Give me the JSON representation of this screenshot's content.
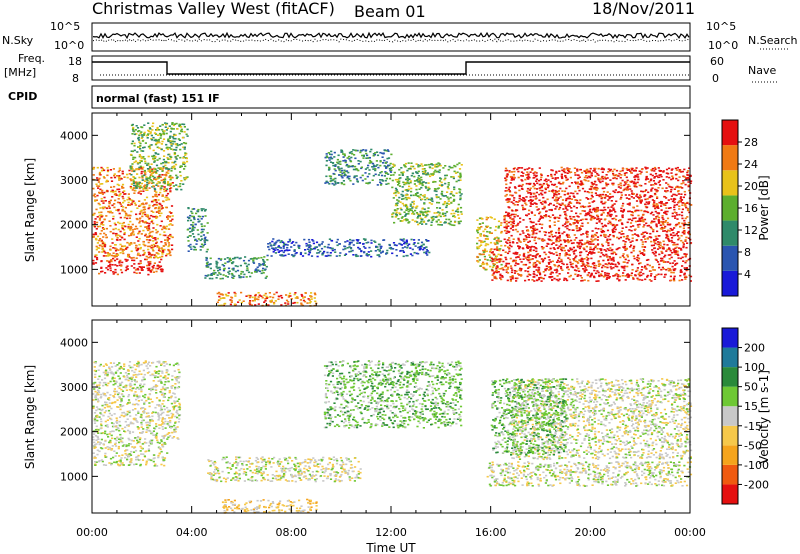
{
  "header": {
    "station": "Christmas Valley West (fitACF)",
    "beam": "Beam 01",
    "date": "18/Nov/2011"
  },
  "strip": {
    "nsky_label": "N.Sky",
    "nsky_ticks": [
      "10^5",
      "10^0"
    ],
    "nsearch_label": "N.Search",
    "nsearch_ticks": [
      "10^5",
      "10^0"
    ],
    "freq_label": "Freq.",
    "freq_unit": "[MHz]",
    "freq_ticks": [
      "18",
      "8"
    ],
    "nave_label": "Nave",
    "nave_ticks": [
      "60",
      "0"
    ],
    "cpid_label": "CPID",
    "cpid_value": "normal (fast) 151 IF"
  },
  "chart_data": [
    {
      "type": "heatmap",
      "name": "power",
      "ylabel": "Slant Range [km]",
      "ylim": [
        180,
        4500
      ],
      "yticks": [
        1000,
        2000,
        3000,
        4000
      ],
      "xlim": [
        0,
        24
      ],
      "colorbar_label": "Power [dB]",
      "colorbar_ticks": [
        "4",
        "8",
        "12",
        "16",
        "20",
        "24",
        "28"
      ],
      "colors": [
        "#1a1ad8",
        "#2a55b0",
        "#2f8a6a",
        "#5cae2e",
        "#e8c21a",
        "#f07a14",
        "#e51010"
      ],
      "regions": [
        {
          "t0": 0.0,
          "t1": 2.8,
          "r0": 900,
          "r1": 1250,
          "level": 6
        },
        {
          "t0": 0.0,
          "t1": 3.2,
          "r0": 1250,
          "r1": 3300,
          "level": 5
        },
        {
          "t0": 1.5,
          "t1": 3.8,
          "r0": 2800,
          "r1": 4300,
          "level": 3
        },
        {
          "t0": 3.8,
          "t1": 4.6,
          "r0": 1400,
          "r1": 2400,
          "level": 2
        },
        {
          "t0": 4.5,
          "t1": 7.0,
          "r0": 800,
          "r1": 1300,
          "level": 2
        },
        {
          "t0": 7.0,
          "t1": 13.5,
          "r0": 1300,
          "r1": 1700,
          "level": 1
        },
        {
          "t0": 9.3,
          "t1": 12.0,
          "r0": 2900,
          "r1": 3700,
          "level": 2
        },
        {
          "t0": 12.0,
          "t1": 14.8,
          "r0": 2000,
          "r1": 3400,
          "level": 3
        },
        {
          "t0": 5.0,
          "t1": 9.0,
          "r0": 200,
          "r1": 500,
          "level": 5
        },
        {
          "t0": 15.4,
          "t1": 16.4,
          "r0": 1000,
          "r1": 2200,
          "level": 4
        },
        {
          "t0": 16.0,
          "t1": 24.0,
          "r0": 750,
          "r1": 1500,
          "level": 6
        },
        {
          "t0": 16.5,
          "t1": 24.0,
          "r0": 1500,
          "r1": 3300,
          "level": 6
        }
      ]
    },
    {
      "type": "heatmap",
      "name": "velocity",
      "ylabel": "Slant Range [km]",
      "xlabel": "Time UT",
      "ylim": [
        180,
        4500
      ],
      "yticks": [
        1000,
        2000,
        3000,
        4000
      ],
      "xlim": [
        0,
        24
      ],
      "xticks": [
        "00:00",
        "04:00",
        "08:00",
        "12:00",
        "16:00",
        "20:00",
        "00:00"
      ],
      "colorbar_label": "Velocity [m s-1]",
      "colorbar_ticks": [
        "-200",
        "-100",
        "-50",
        "-15",
        "15",
        "50",
        "100",
        "200"
      ],
      "colors": [
        "#e51010",
        "#f05a10",
        "#f5a41c",
        "#f6c84a",
        "#c8c8c8",
        "#6ec834",
        "#2a8a3a",
        "#1f7a9a",
        "#1a1ad8"
      ],
      "regions": [
        {
          "t0": 0.0,
          "t1": 3.0,
          "r0": 1250,
          "r1": 1850,
          "level": 4
        },
        {
          "t0": 0.0,
          "t1": 3.5,
          "r0": 1850,
          "r1": 3600,
          "level": 4
        },
        {
          "t0": 4.6,
          "t1": 10.8,
          "r0": 900,
          "r1": 1450,
          "level": 4
        },
        {
          "t0": 9.3,
          "t1": 14.8,
          "r0": 2100,
          "r1": 3600,
          "level": 5
        },
        {
          "t0": 5.2,
          "t1": 9.0,
          "r0": 200,
          "r1": 500,
          "level": 3
        },
        {
          "t0": 15.8,
          "t1": 24.0,
          "r0": 800,
          "r1": 1350,
          "level": 4
        },
        {
          "t0": 16.8,
          "t1": 24.0,
          "r0": 1400,
          "r1": 3200,
          "level": 4
        },
        {
          "t0": 16.0,
          "t1": 19.0,
          "r0": 1500,
          "r1": 3200,
          "level": 5
        }
      ]
    }
  ]
}
